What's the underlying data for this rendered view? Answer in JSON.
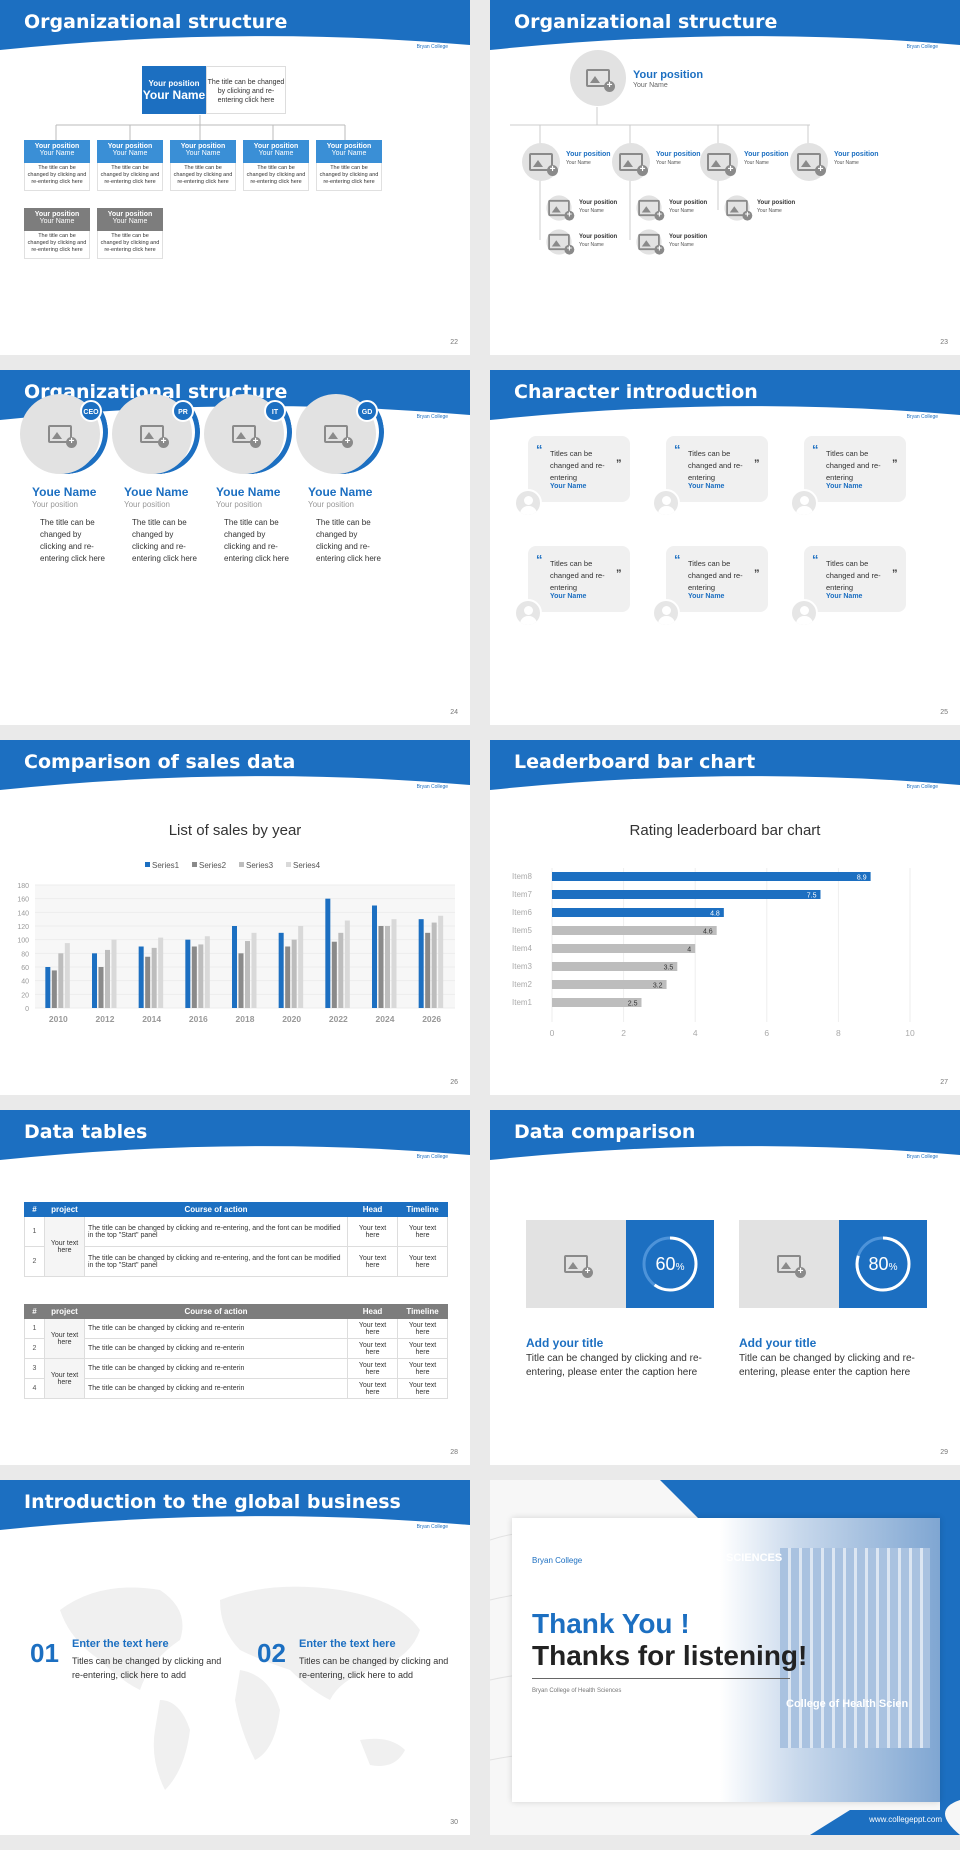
{
  "colors": {
    "accent": "#1c6fc1",
    "gray": "#7d7d7d"
  },
  "logo": "Bryan College",
  "s22": {
    "title": "Organizational structure",
    "num": "22",
    "top_pos": "Your position",
    "top_name": "Your Name",
    "top_desc": "The title can be changed by clicking and re-entering click here",
    "boxes": [
      {
        "pos": "Your position",
        "name": "Your Name",
        "desc": "The title can be changed by clicking and re-entering click here"
      },
      {
        "pos": "Your position",
        "name": "Your Name",
        "desc": "The title can be changed by clicking and re-entering click here"
      },
      {
        "pos": "Your position",
        "name": "Your Name",
        "desc": "The title can be changed by clicking and re-entering click here"
      },
      {
        "pos": "Your position",
        "name": "Your Name",
        "desc": "The title can be changed by clicking and re-entering click here"
      },
      {
        "pos": "Your position",
        "name": "Your Name",
        "desc": "The title can be changed by clicking and re-entering click here"
      },
      {
        "pos": "Your position",
        "name": "Your Name",
        "desc": "The title can be changed by clicking and re-entering click here"
      },
      {
        "pos": "Your position",
        "name": "Your Name",
        "desc": "The title can be changed by clicking and re-entering click here"
      }
    ]
  },
  "s23": {
    "title": "Organizational structure",
    "num": "23",
    "top_pos": "Your position",
    "top_name": "Your Name",
    "pos": "Your position",
    "name": "Your Name"
  },
  "s24": {
    "title": "Organizational structure",
    "num": "24",
    "people": [
      {
        "badge": "CEO",
        "name": "Youe Name",
        "pos": "Your position",
        "desc": "The title can be changed by clicking and re-entering click here"
      },
      {
        "badge": "PR",
        "name": "Youe Name",
        "pos": "Your position",
        "desc": "The title can be changed by clicking and re-entering click here"
      },
      {
        "badge": "IT",
        "name": "Youe Name",
        "pos": "Your position",
        "desc": "The title can be changed by clicking and re-entering click here"
      },
      {
        "badge": "GD",
        "name": "Youe Name",
        "pos": "Your position",
        "desc": "The title can be changed by clicking and re-entering click here"
      }
    ]
  },
  "s25": {
    "title": "Character introduction",
    "num": "25",
    "quote": "Titles can be changed and re-entering",
    "name": "Your Name",
    "open": "“",
    "close": "”"
  },
  "s26": {
    "title": "Comparison of sales data",
    "num": "26",
    "chart_title": "List of sales by year"
  },
  "s27": {
    "title": "Leaderboard bar chart",
    "num": "27",
    "chart_title": "Rating leaderboard bar chart"
  },
  "chart_data": [
    {
      "type": "bar",
      "title": "List of sales by year",
      "categories": [
        "2010",
        "2012",
        "2014",
        "2016",
        "2018",
        "2020",
        "2022",
        "2024",
        "2026"
      ],
      "ylim": [
        0,
        180
      ],
      "yticks": [
        0,
        20,
        40,
        60,
        80,
        100,
        120,
        140,
        160,
        180
      ],
      "legend": "top",
      "series": [
        {
          "name": "Series1",
          "color": "#1c6fc1",
          "values": [
            60,
            80,
            90,
            100,
            120,
            110,
            160,
            150,
            130
          ]
        },
        {
          "name": "Series2",
          "color": "#8a8a8a",
          "values": [
            55,
            60,
            75,
            90,
            80,
            90,
            97,
            120,
            110
          ]
        },
        {
          "name": "Series3",
          "color": "#bdbdbd",
          "values": [
            80,
            85,
            88,
            93,
            98,
            100,
            110,
            120,
            125
          ]
        },
        {
          "name": "Series4",
          "color": "#d9d9d9",
          "values": [
            95,
            100,
            103,
            105,
            110,
            120,
            128,
            130,
            135
          ]
        }
      ]
    },
    {
      "type": "bar",
      "orientation": "horizontal",
      "title": "Rating leaderboard bar chart",
      "categories": [
        "Item8",
        "Item7",
        "Item6",
        "Item5",
        "Item4",
        "Item3",
        "Item2",
        "Item1"
      ],
      "values": [
        8.9,
        7.5,
        4.8,
        4.6,
        4,
        3.5,
        3.2,
        2.5
      ],
      "labels": [
        "8.9",
        "7.5",
        "4.8",
        "4.6",
        "4",
        "3.5",
        "3.2",
        "2.5"
      ],
      "xlim": [
        0,
        10
      ],
      "xticks": [
        0,
        2,
        4,
        6,
        8,
        10
      ]
    }
  ],
  "s28": {
    "title": "Data tables",
    "num": "28",
    "headers": [
      "#",
      "project",
      "Course of action",
      "Head",
      "Timeline"
    ],
    "proj": "Your text here",
    "cell": "Your text here",
    "t1rows": [
      {
        "n": "1",
        "c": "The title can be changed by clicking and re-entering, and the font can be modified in the top \"Start\" panel"
      },
      {
        "n": "2",
        "c": "The title can be changed by clicking and re-entering, and the font can be modified in the top \"Start\" panel"
      }
    ],
    "t2rows": [
      {
        "n": "1",
        "c": "The title can be changed by clicking and re-enterin"
      },
      {
        "n": "2",
        "c": "The title can be changed by clicking and re-enterin"
      },
      {
        "n": "3",
        "c": "The title can be changed by clicking and re-enterin"
      },
      {
        "n": "4",
        "c": "The title can be changed by clicking and re-enterin"
      }
    ]
  },
  "s29": {
    "title": "Data comparison",
    "num": "29",
    "items": [
      {
        "pct": "60",
        "frac": 0.6,
        "title": "Add your title",
        "desc": "Title can be changed by clicking and re-entering, please enter the caption here"
      },
      {
        "pct": "80",
        "frac": 0.8,
        "title": "Add your title",
        "desc": "Title can be changed by clicking and re-entering, please enter the caption here"
      }
    ],
    "pct_sign": "%"
  },
  "s30": {
    "title": "Introduction to the global business",
    "num": "30",
    "items": [
      {
        "n": "01",
        "t": "Enter the text here",
        "d": "Titles can be changed by clicking and re-entering, click here to add"
      },
      {
        "n": "02",
        "t": "Enter the text here",
        "d": "Titles can be changed by clicking and re-entering, click here to add"
      }
    ]
  },
  "s31": {
    "thank": "Thank You !",
    "listen": "Thanks for listening!",
    "college": "Bryan College of Health Sciences",
    "url": "www.collegeppt.com",
    "sign": "SCIENCES",
    "sign2": "College of Health Scien"
  }
}
